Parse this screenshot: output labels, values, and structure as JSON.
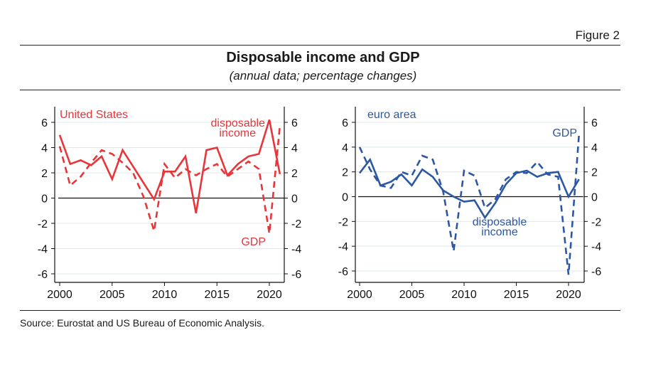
{
  "header": {
    "figure_label": "Figure 2",
    "title": "Disposable income and GDP",
    "subtitle": "(annual data; percentage changes)"
  },
  "footer": {
    "source": "Source: Eurostat and US Bureau of Economic Analysis."
  },
  "chart_data": [
    {
      "type": "line",
      "panel_label": "United States",
      "color": "#e8353a",
      "x": [
        2000,
        2001,
        2002,
        2003,
        2004,
        2005,
        2006,
        2007,
        2008,
        2009,
        2010,
        2011,
        2012,
        2013,
        2014,
        2015,
        2016,
        2017,
        2018,
        2019,
        2020,
        2021
      ],
      "series": [
        {
          "name": "disposable income",
          "style": "solid",
          "values": [
            5.0,
            2.7,
            3.0,
            2.6,
            3.3,
            1.5,
            3.8,
            2.5,
            1.2,
            -0.1,
            2.1,
            2.1,
            3.3,
            -1.2,
            3.8,
            4.0,
            1.8,
            2.7,
            3.3,
            3.5,
            6.2,
            1.9
          ]
        },
        {
          "name": "GDP",
          "style": "dashed",
          "values": [
            4.1,
            1.0,
            1.7,
            2.8,
            3.8,
            3.5,
            2.8,
            2.0,
            0.1,
            -2.6,
            2.7,
            1.6,
            2.3,
            1.8,
            2.3,
            2.7,
            1.7,
            2.3,
            2.9,
            2.3,
            -2.8,
            5.7
          ]
        }
      ],
      "annotations": [
        {
          "text": "disposable",
          "series": "disposable income"
        },
        {
          "text": "income",
          "series": "disposable income"
        },
        {
          "text": "GDP",
          "series": "GDP"
        }
      ],
      "xticks": [
        2000,
        2005,
        2010,
        2015,
        2020
      ],
      "yticks": [
        6,
        4,
        2,
        0,
        -2,
        -4,
        -6
      ],
      "ylim": [
        -6.5,
        7.2
      ],
      "xlim": [
        1999.5,
        2021.6
      ],
      "grid": true,
      "xlabel": "",
      "ylabel": ""
    },
    {
      "type": "line",
      "panel_label": "euro area",
      "color": "#2b57a3",
      "x": [
        2000,
        2001,
        2002,
        2003,
        2004,
        2005,
        2006,
        2007,
        2008,
        2009,
        2010,
        2011,
        2012,
        2013,
        2014,
        2015,
        2016,
        2017,
        2018,
        2019,
        2020,
        2021
      ],
      "series": [
        {
          "name": "disposable income",
          "style": "solid",
          "values": [
            1.9,
            3.0,
            0.9,
            1.2,
            1.8,
            0.9,
            2.2,
            1.6,
            0.5,
            0.0,
            -0.4,
            -0.3,
            -1.7,
            -0.5,
            1.0,
            1.9,
            2.1,
            1.6,
            1.9,
            2.0,
            0.0,
            1.4
          ]
        },
        {
          "name": "GDP",
          "style": "dashed",
          "values": [
            4.0,
            2.2,
            0.9,
            0.7,
            2.0,
            1.7,
            3.3,
            3.0,
            0.4,
            -4.4,
            2.1,
            1.7,
            -0.9,
            -0.2,
            1.4,
            2.0,
            1.9,
            2.8,
            1.8,
            1.6,
            -6.3,
            5.0
          ]
        }
      ],
      "annotations": [
        {
          "text": "GDP",
          "series": "GDP"
        },
        {
          "text": "disposable",
          "series": "disposable income"
        },
        {
          "text": "income",
          "series": "disposable income"
        }
      ],
      "xticks": [
        2000,
        2005,
        2010,
        2015,
        2020
      ],
      "yticks": [
        6,
        4,
        2,
        0,
        -2,
        -4,
        -6
      ],
      "ylim": [
        -6.6,
        7.2
      ],
      "xlim": [
        1999.5,
        2021.6
      ],
      "grid": true,
      "xlabel": "",
      "ylabel": ""
    }
  ]
}
